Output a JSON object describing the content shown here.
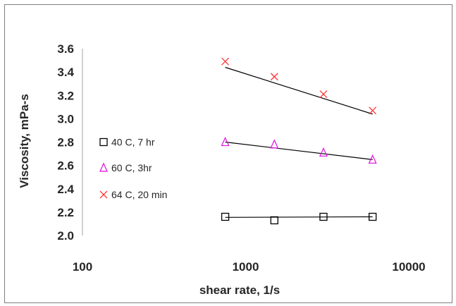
{
  "chart_data": {
    "type": "scatter",
    "xlabel": "shear rate, 1/s",
    "ylabel": "Viscosity, mPa-s",
    "x_scale": "log",
    "xlim": [
      100,
      10000
    ],
    "ylim": [
      2.0,
      3.6
    ],
    "x_ticks": [
      "100",
      "1000",
      "10000"
    ],
    "y_ticks": [
      "2.0",
      "2.2",
      "2.4",
      "2.6",
      "2.8",
      "3.0",
      "3.2",
      "3.4",
      "3.6"
    ],
    "grid": false,
    "legend_position": "left-inside",
    "series": [
      {
        "name": "40 C, 7 hr",
        "marker": "square",
        "color": "#000000",
        "x": [
          750,
          1500,
          3000,
          6000
        ],
        "y": [
          2.16,
          2.13,
          2.16,
          2.16
        ],
        "trendline": {
          "x": [
            750,
            6000
          ],
          "y": [
            2.155,
            2.16
          ]
        }
      },
      {
        "name": "60 C, 3hr",
        "marker": "triangle",
        "color": "#e020e0",
        "x": [
          750,
          1500,
          3000,
          6000
        ],
        "y": [
          2.8,
          2.78,
          2.71,
          2.65
        ],
        "trendline": {
          "x": [
            750,
            6000
          ],
          "y": [
            2.8,
            2.65
          ]
        }
      },
      {
        "name": "64 C, 20 min",
        "marker": "x",
        "color": "#ff3333",
        "x": [
          750,
          1500,
          3000,
          6000
        ],
        "y": [
          3.49,
          3.36,
          3.21,
          3.07
        ],
        "trendline": {
          "x": [
            750,
            6000
          ],
          "y": [
            3.44,
            3.04
          ]
        }
      }
    ]
  }
}
